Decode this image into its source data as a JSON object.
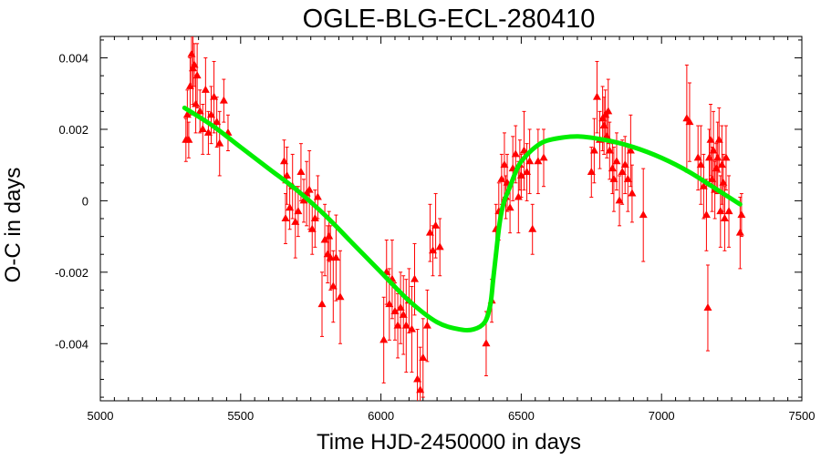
{
  "chart_data": {
    "type": "scatter",
    "title": "OGLE-BLG-ECL-280410",
    "xlabel": "Time HJD-2450000 in days",
    "ylabel": "O-C in days",
    "xlim": [
      5000,
      7500
    ],
    "ylim": [
      -0.0056,
      0.0046
    ],
    "x_ticks": [
      5000,
      5500,
      6000,
      6500,
      7000,
      7500
    ],
    "x_tick_labels": [
      "5000",
      "5500",
      "6000",
      "6500",
      "7000",
      "7500"
    ],
    "y_ticks": [
      0.004,
      0.002,
      0,
      -0.002,
      -0.004
    ],
    "y_tick_labels": [
      "0.004",
      "0.002",
      "0",
      "-0.002",
      "-0.004"
    ],
    "grid": false,
    "colors": {
      "points": "#ff0000",
      "fit": "#00ee00",
      "frame": "#000000"
    },
    "series": [
      {
        "kind": "points-with-error-bars",
        "points": [
          [
            5305,
            0.0017,
            0.0006
          ],
          [
            5310,
            0.0024,
            0.0007
          ],
          [
            5315,
            0.0017,
            0.0005
          ],
          [
            5320,
            0.0032,
            0.0008
          ],
          [
            5325,
            0.0041,
            0.0009
          ],
          [
            5330,
            0.0037,
            0.001
          ],
          [
            5335,
            0.0038,
            0.0006
          ],
          [
            5340,
            0.0027,
            0.0008
          ],
          [
            5345,
            0.0035,
            0.0009
          ],
          [
            5355,
            0.0025,
            0.0006
          ],
          [
            5365,
            0.002,
            0.0007
          ],
          [
            5375,
            0.0031,
            0.0009
          ],
          [
            5385,
            0.0019,
            0.0006
          ],
          [
            5395,
            0.0024,
            0.0008
          ],
          [
            5405,
            0.0029,
            0.001
          ],
          [
            5415,
            0.0022,
            0.0007
          ],
          [
            5425,
            0.0016,
            0.0009
          ],
          [
            5440,
            0.0028,
            0.0006
          ],
          [
            5455,
            0.0019,
            0.0005
          ],
          [
            5655,
            0.0011,
            0.0006
          ],
          [
            5660,
            -0.0005,
            0.0007
          ],
          [
            5665,
            0.0007,
            0.0008
          ],
          [
            5675,
            -0.0002,
            0.0006
          ],
          [
            5685,
            0.0004,
            0.0009
          ],
          [
            5695,
            -0.0006,
            0.001
          ],
          [
            5705,
            -0.0003,
            0.0007
          ],
          [
            5715,
            0.0008,
            0.0008
          ],
          [
            5725,
            0.0,
            0.0006
          ],
          [
            5735,
            0.0002,
            0.0009
          ],
          [
            5745,
            0.0003,
            0.0011
          ],
          [
            5755,
            -0.0008,
            0.0007
          ],
          [
            5765,
            -0.0005,
            0.0008
          ],
          [
            5775,
            0.0001,
            0.0006
          ],
          [
            5790,
            -0.0029,
            0.0009
          ],
          [
            5800,
            -0.0011,
            0.001
          ],
          [
            5810,
            -0.0015,
            0.0008
          ],
          [
            5815,
            -0.001,
            0.0007
          ],
          [
            5820,
            -0.0016,
            0.0009
          ],
          [
            5830,
            -0.0024,
            0.001
          ],
          [
            5840,
            -0.0016,
            0.0012
          ],
          [
            5855,
            -0.0027,
            0.0013
          ],
          [
            6010,
            -0.0039,
            0.0012
          ],
          [
            6020,
            -0.002,
            0.0009
          ],
          [
            6030,
            -0.0029,
            0.001
          ],
          [
            6040,
            -0.0022,
            0.0011
          ],
          [
            6050,
            -0.0031,
            0.0008
          ],
          [
            6060,
            -0.0035,
            0.0009
          ],
          [
            6070,
            -0.003,
            0.001
          ],
          [
            6080,
            -0.0032,
            0.0011
          ],
          [
            6090,
            -0.0035,
            0.0013
          ],
          [
            6100,
            -0.0028,
            0.0009
          ],
          [
            6110,
            -0.0036,
            0.0012
          ],
          [
            6120,
            -0.0022,
            0.001
          ],
          [
            6130,
            -0.005,
            0.0014
          ],
          [
            6140,
            -0.0053,
            0.0012
          ],
          [
            6150,
            -0.0044,
            0.0011
          ],
          [
            6165,
            -0.0035,
            0.001
          ],
          [
            6175,
            -0.0009,
            0.0008
          ],
          [
            6185,
            -0.0014,
            0.0007
          ],
          [
            6195,
            -0.0007,
            0.0009
          ],
          [
            6210,
            -0.0013,
            0.0008
          ],
          [
            6375,
            -0.004,
            0.0009
          ],
          [
            6395,
            -0.0028,
            0.0006
          ],
          [
            6410,
            -0.0008,
            0.0007
          ],
          [
            6420,
            -0.0003,
            0.0008
          ],
          [
            6430,
            0.0006,
            0.0007
          ],
          [
            6440,
            0.001,
            0.0009
          ],
          [
            6445,
            0.0001,
            0.0006
          ],
          [
            6450,
            0.0005,
            0.0008
          ],
          [
            6460,
            -0.0002,
            0.0007
          ],
          [
            6470,
            0.0009,
            0.0009
          ],
          [
            6480,
            0.0013,
            0.0008
          ],
          [
            6490,
            0.0001,
            0.001
          ],
          [
            6495,
            0.001,
            0.0007
          ],
          [
            6500,
            0.0007,
            0.0006
          ],
          [
            6510,
            0.0014,
            0.0011
          ],
          [
            6520,
            0.0008,
            0.0008
          ],
          [
            6530,
            0.0011,
            0.0009
          ],
          [
            6540,
            -0.0008,
            0.0007
          ],
          [
            6560,
            0.0011,
            0.0009
          ],
          [
            6580,
            0.0012,
            0.0008
          ],
          [
            6750,
            0.0008,
            0.0007
          ],
          [
            6760,
            0.0014,
            0.0009
          ],
          [
            6770,
            0.0029,
            0.001
          ],
          [
            6780,
            0.0017,
            0.0008
          ],
          [
            6790,
            0.0023,
            0.0009
          ],
          [
            6795,
            0.0021,
            0.0008
          ],
          [
            6800,
            0.0024,
            0.0007
          ],
          [
            6805,
            0.0018,
            0.0006
          ],
          [
            6810,
            0.0025,
            0.0009
          ],
          [
            6815,
            0.0014,
            0.0008
          ],
          [
            6825,
            0.0009,
            0.0007
          ],
          [
            6830,
            0.0006,
            0.0009
          ],
          [
            6840,
            0.0011,
            0.0008
          ],
          [
            6850,
            0.0,
            0.0007
          ],
          [
            6860,
            0.0008,
            0.0009
          ],
          [
            6870,
            0.001,
            0.0008
          ],
          [
            6880,
            0.0006,
            0.0009
          ],
          [
            6890,
            0.0014,
            0.001
          ],
          [
            6895,
            0.0002,
            0.0008
          ],
          [
            6935,
            -0.0004,
            0.0013
          ],
          [
            7090,
            0.0023,
            0.0015
          ],
          [
            7100,
            0.0022,
            0.0011
          ],
          [
            7130,
            0.0012,
            0.0009
          ],
          [
            7140,
            0.001,
            0.0011
          ],
          [
            7150,
            0.0004,
            0.0009
          ],
          [
            7160,
            -0.0004,
            0.001
          ],
          [
            7165,
            -0.003,
            0.0012
          ],
          [
            7170,
            0.0012,
            0.0008
          ],
          [
            7175,
            0.0017,
            0.001
          ],
          [
            7180,
            0.0006,
            0.0009
          ],
          [
            7185,
            0.0014,
            0.0011
          ],
          [
            7190,
            0.0003,
            0.0008
          ],
          [
            7195,
            0.0009,
            0.0007
          ],
          [
            7200,
            0.0012,
            0.001
          ],
          [
            7205,
            0.0017,
            0.0009
          ],
          [
            7210,
            -0.0003,
            0.001
          ],
          [
            7215,
            0.001,
            0.0011
          ],
          [
            7220,
            0.0005,
            0.0008
          ],
          [
            7225,
            -0.0005,
            0.0009
          ],
          [
            7230,
            0.0012,
            0.0009
          ],
          [
            7240,
            -0.0003,
            0.001
          ],
          [
            7280,
            -0.0009,
            0.001
          ],
          [
            7285,
            -0.0004,
            0.0006
          ]
        ]
      },
      {
        "kind": "fit-curve",
        "points": [
          [
            5300,
            0.0026
          ],
          [
            5400,
            0.0021
          ],
          [
            5500,
            0.0015
          ],
          [
            5600,
            0.0009
          ],
          [
            5700,
            0.0003
          ],
          [
            5800,
            -0.0004
          ],
          [
            5900,
            -0.0012
          ],
          [
            6000,
            -0.002
          ],
          [
            6100,
            -0.0028
          ],
          [
            6200,
            -0.0034
          ],
          [
            6280,
            -0.0036
          ],
          [
            6330,
            -0.0036
          ],
          [
            6370,
            -0.0034
          ],
          [
            6390,
            -0.0029
          ],
          [
            6400,
            -0.0022
          ],
          [
            6410,
            -0.0015
          ],
          [
            6420,
            -0.0008
          ],
          [
            6430,
            -0.0003
          ],
          [
            6440,
            0.0
          ],
          [
            6460,
            0.0004
          ],
          [
            6480,
            0.0008
          ],
          [
            6500,
            0.0011
          ],
          [
            6550,
            0.0015
          ],
          [
            6600,
            0.0017
          ],
          [
            6700,
            0.0018
          ],
          [
            6800,
            0.0017
          ],
          [
            6900,
            0.0015
          ],
          [
            7000,
            0.0012
          ],
          [
            7100,
            0.0008
          ],
          [
            7200,
            0.0003
          ],
          [
            7280,
            -0.0001
          ]
        ]
      }
    ]
  }
}
